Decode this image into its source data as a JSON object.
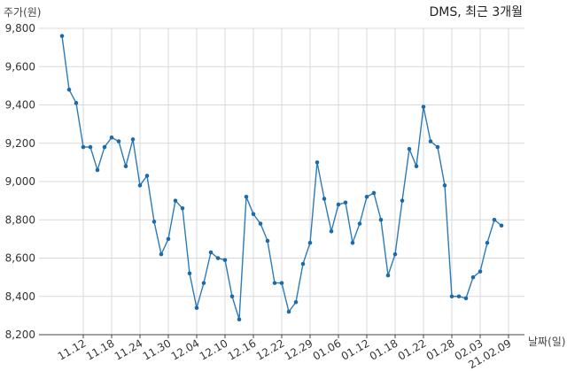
{
  "chart_data": {
    "type": "line",
    "title": "DMS, 최근 3개월",
    "ylabel": "주가(원)",
    "xlabel": "날짜(일)",
    "ylim": [
      8200,
      9800
    ],
    "yticks": [
      "9,800",
      "9,600",
      "9,400",
      "9,200",
      "9,000",
      "8,800",
      "8,600",
      "8,400",
      "8,200"
    ],
    "ytick_values": [
      9800,
      9600,
      9400,
      9200,
      9000,
      8800,
      8600,
      8400,
      8200
    ],
    "xtick_labels": [
      "11.12",
      "11.18",
      "11.24",
      "11.30",
      "12.04",
      "12.10",
      "12.16",
      "12.22",
      "12.29",
      "01.06",
      "01.12",
      "01.18",
      "01.22",
      "01.28",
      "02.03",
      "21.02.09"
    ],
    "xtick_indices": [
      3,
      7,
      11,
      15,
      19,
      23,
      27,
      31,
      35,
      39,
      43,
      47,
      51,
      55,
      59,
      63
    ],
    "grid": true,
    "series": [
      {
        "color": "#2b7bb9",
        "values": [
          9760,
          9480,
          9410,
          9180,
          9180,
          9060,
          9180,
          9230,
          9210,
          9080,
          9220,
          8980,
          9030,
          8790,
          8620,
          8700,
          8900,
          8860,
          8520,
          8340,
          8470,
          8630,
          8600,
          8590,
          8400,
          8280,
          8920,
          8830,
          8780,
          8690,
          8470,
          8470,
          8320,
          8370,
          8570,
          8680,
          9100,
          8910,
          8740,
          8880,
          8890,
          8680,
          8780,
          8920,
          8940,
          8800,
          8510,
          8620,
          8900,
          9170,
          9080,
          9390,
          9210,
          9180,
          8980,
          8400,
          8400,
          8390,
          8500,
          8530,
          8680,
          8800,
          8770
        ]
      }
    ]
  }
}
